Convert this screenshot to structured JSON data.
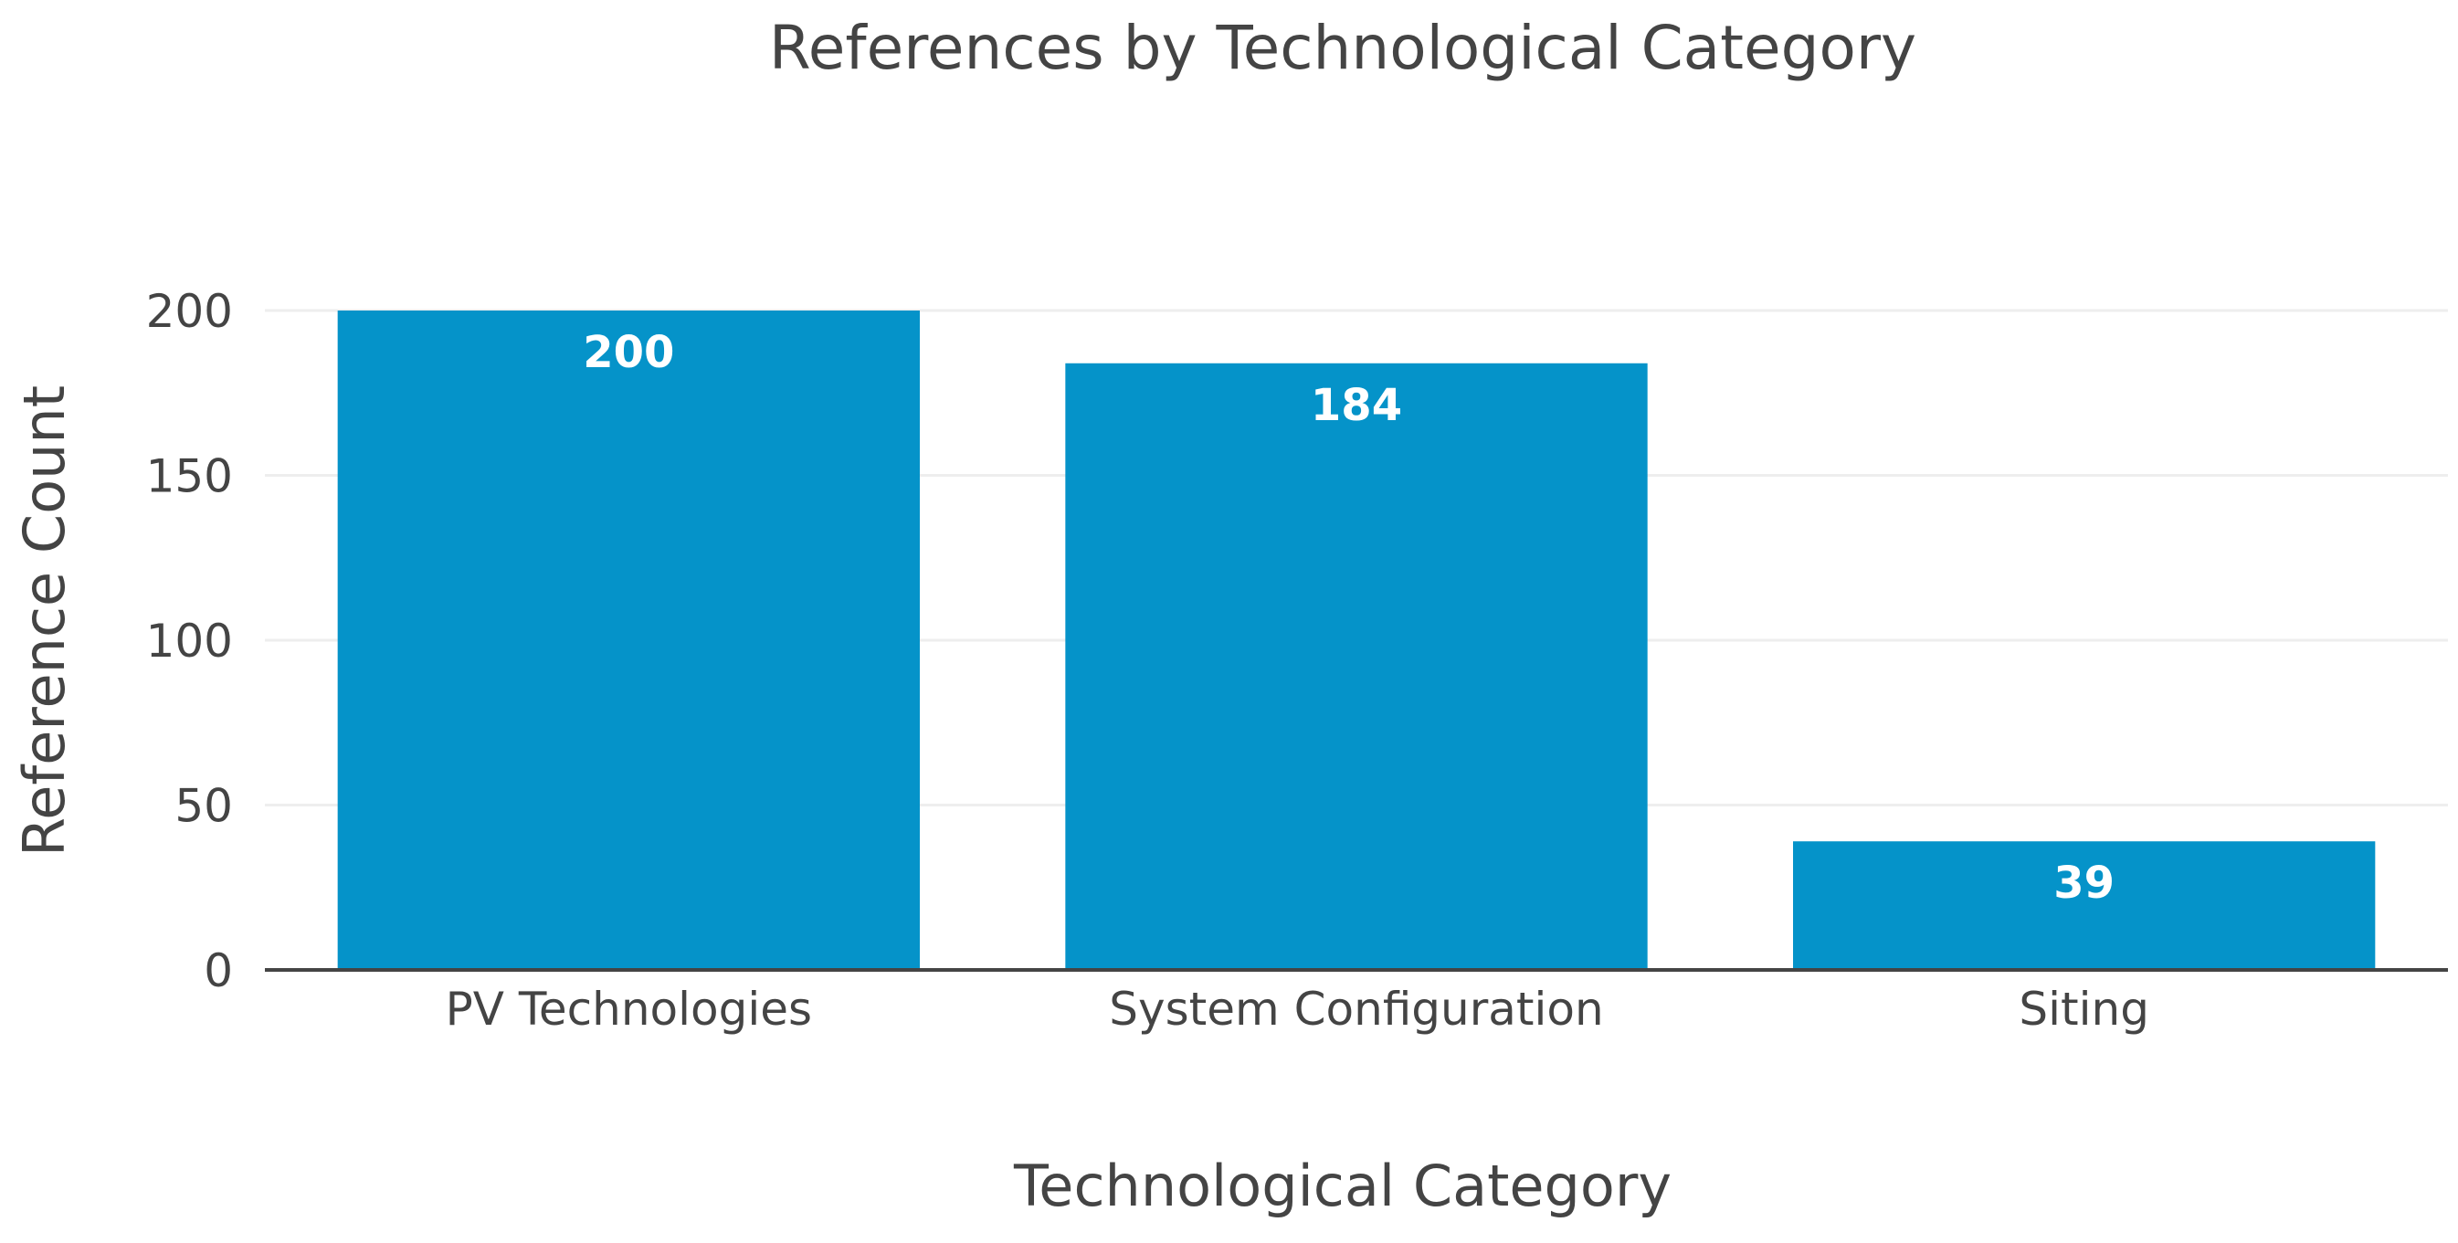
{
  "chart_data": {
    "type": "bar",
    "title": "References by Technological Category",
    "xlabel": "Technological Category",
    "ylabel": "Reference Count",
    "categories": [
      "PV Technologies",
      "System Configuration",
      "Siting"
    ],
    "values": [
      200,
      184,
      39
    ],
    "data_labels": [
      "200",
      "184",
      "39"
    ],
    "ylim": [
      0,
      200
    ],
    "yticks": [
      0,
      50,
      100,
      150,
      200
    ],
    "ytick_labels": [
      "0",
      "50",
      "100",
      "150",
      "200"
    ],
    "grid": true,
    "legend": "none",
    "colors": {
      "bar": "#0593c9",
      "grid": "#eeeeee",
      "axis": "#444444",
      "text": "#444444",
      "bar_label": "#ffffff"
    }
  }
}
